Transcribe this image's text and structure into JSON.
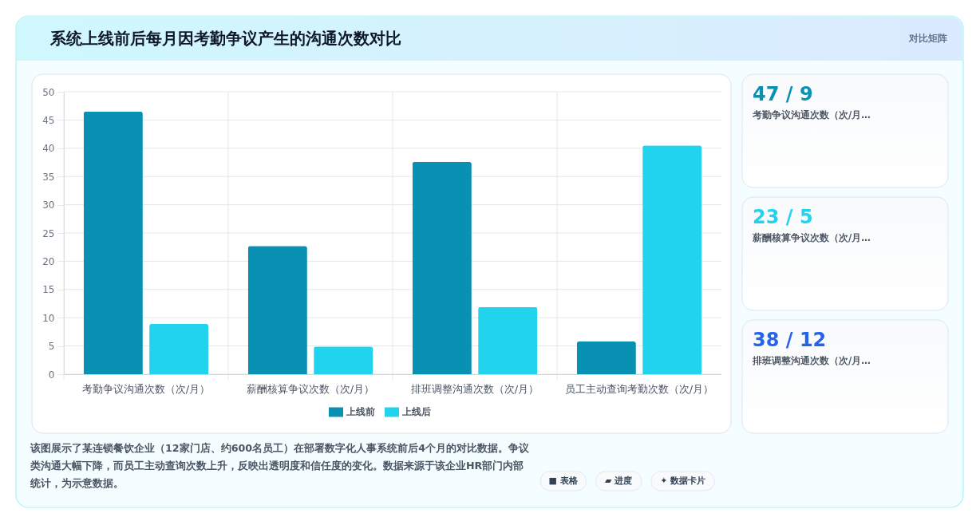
{
  "chart_data": [
    {
      "type": "bar",
      "title": "系统上线前后每月因考勤争议产生的沟通次数对比",
      "categories": [
        "考勤争议沟通次数（次/月）",
        "薪酬核算争议次数（次/月）",
        "排班调整沟通次数（次/月）",
        "员工主动查询考勤次数（次/月）"
      ],
      "series": [
        {
          "name": "上线前",
          "color": "#0891b2",
          "values": [
            46.5,
            22.7,
            37.6,
            5.8
          ]
        },
        {
          "name": "上线后",
          "color": "#22d3ee",
          "values": [
            8.9,
            4.9,
            11.9,
            40.5
          ]
        }
      ],
      "ylim": [
        0,
        50
      ],
      "yticks": [
        0,
        5,
        10,
        15,
        20,
        25,
        30,
        35,
        40,
        45,
        50
      ],
      "grid": true,
      "legend": "bottom",
      "annotations": [
        "对比矩阵",
        "该图展示了某连锁餐饮企业（12家门店、约600名员工）在部署数字化人事系统前后4个月的对比数据。争议类沟通大幅下降，而员工主动查询次数上升，反映出透明度和信任度的变化。数据来源于该企业HR部门内部统计，为示意数据。",
        "■ 表格",
        "▰ 进度",
        "✦ 数据卡片"
      ]
    },
    {
      "type": "other",
      "annotations": [
        "47 / 9",
        "考勤争议沟通次数（次/月…",
        "23 / 5",
        "薪酬核算争议次数（次/月…",
        "38 / 12",
        "排班调整沟通次数（次/月…"
      ],
      "colors": [
        "#0891b2",
        "#22d3ee",
        "#2563eb"
      ]
    }
  ]
}
